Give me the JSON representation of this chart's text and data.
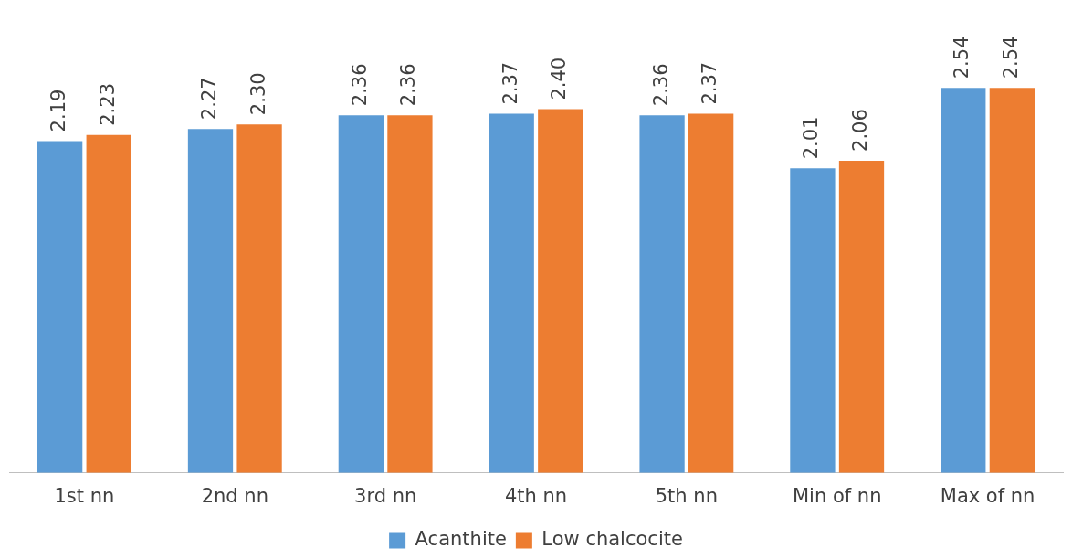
{
  "chart_data": {
    "type": "bar",
    "categories": [
      "1st nn",
      "2nd nn",
      "3rd nn",
      "4th nn",
      "5th nn",
      "Min of nn",
      "Max of nn"
    ],
    "series": [
      {
        "name": "Acanthite",
        "color": "#5b9bd5",
        "values": [
          2.19,
          2.27,
          2.36,
          2.37,
          2.36,
          2.01,
          2.54
        ],
        "value_labels": [
          "2.19",
          "2.27",
          "2.36",
          "2.37",
          "2.36",
          "2.01",
          "2.54"
        ]
      },
      {
        "name": "Low chalcocite",
        "color": "#ed7d31",
        "values": [
          2.23,
          2.3,
          2.36,
          2.4,
          2.37,
          2.06,
          2.54
        ],
        "value_labels": [
          "2.23",
          "2.30",
          "2.36",
          "2.40",
          "2.37",
          "2.06",
          "2.54"
        ]
      }
    ],
    "legend": "bottom",
    "grid": false
  }
}
